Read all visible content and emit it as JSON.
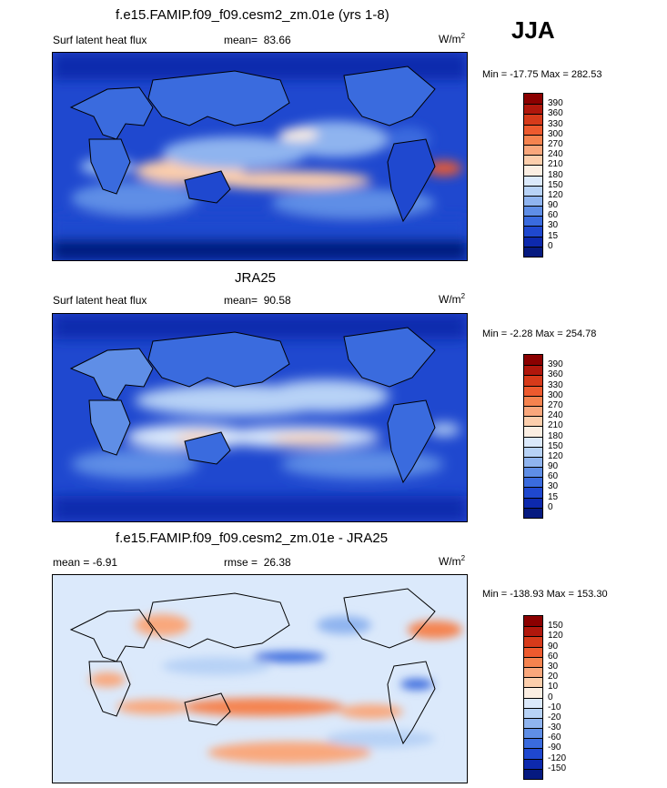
{
  "season": "JJA",
  "panels": [
    {
      "title": "f.e15.FAMIP.f09_f09.cesm2_zm.01e (yrs 1-8)",
      "left_label": "Surf latent heat flux",
      "stat_label": "mean=",
      "stat_value": "83.66",
      "units_base": "W/m",
      "units_sup": "2",
      "minmax": "Min = -17.75 Max = 282.53"
    },
    {
      "title": "JRA25",
      "left_label": "Surf latent heat flux",
      "stat_label": "mean=",
      "stat_value": "90.58",
      "units_base": "W/m",
      "units_sup": "2",
      "minmax": "Min =  -2.28 Max = 254.78"
    },
    {
      "title": "f.e15.FAMIP.f09_f09.cesm2_zm.01e - JRA25",
      "left_label": "mean =  -6.91",
      "stat_label": "rmse =",
      "stat_value": "26.38",
      "units_base": "W/m",
      "units_sup": "2",
      "minmax": "Min = -138.93 Max = 153.30"
    }
  ],
  "chart_data": [
    {
      "type": "heatmap",
      "title": "f.e15.FAMIP.f09_f09.cesm2_zm.01e (yrs 1-8)",
      "field": "Surf latent heat flux",
      "units": "W/m2",
      "mean": 83.66,
      "min": -17.75,
      "max": 282.53,
      "colorbar": {
        "levels": [
          "390",
          "360",
          "330",
          "300",
          "270",
          "240",
          "210",
          "180",
          "150",
          "120",
          "90",
          "60",
          "30",
          "15",
          "0"
        ],
        "colors": [
          "#8b0000",
          "#b0170c",
          "#d63a1a",
          "#ed5a2e",
          "#f5834f",
          "#f9a77c",
          "#fcceac",
          "#fbeee2",
          "#dbe9fb",
          "#b7d2f6",
          "#8fb4ef",
          "#5f8ee6",
          "#3a6bde",
          "#1f48cf",
          "#0d29ad",
          "#061a80"
        ]
      }
    },
    {
      "type": "heatmap",
      "title": "JRA25",
      "field": "Surf latent heat flux",
      "units": "W/m2",
      "mean": 90.58,
      "min": -2.28,
      "max": 254.78,
      "colorbar": {
        "levels": [
          "390",
          "360",
          "330",
          "300",
          "270",
          "240",
          "210",
          "180",
          "150",
          "120",
          "90",
          "60",
          "30",
          "15",
          "0"
        ],
        "colors": [
          "#8b0000",
          "#b0170c",
          "#d63a1a",
          "#ed5a2e",
          "#f5834f",
          "#f9a77c",
          "#fcceac",
          "#fbeee2",
          "#dbe9fb",
          "#b7d2f6",
          "#8fb4ef",
          "#5f8ee6",
          "#3a6bde",
          "#1f48cf",
          "#0d29ad",
          "#061a80"
        ]
      }
    },
    {
      "type": "heatmap",
      "title": "f.e15.FAMIP.f09_f09.cesm2_zm.01e - JRA25",
      "units": "W/m2",
      "mean": -6.91,
      "rmse": 26.38,
      "min": -138.93,
      "max": 153.3,
      "colorbar": {
        "levels": [
          "150",
          "120",
          "90",
          "60",
          "30",
          "20",
          "10",
          "0",
          "-10",
          "-20",
          "-30",
          "-60",
          "-90",
          "-120",
          "-150"
        ],
        "colors": [
          "#8b0000",
          "#b0170c",
          "#d63a1a",
          "#ed5a2e",
          "#f5834f",
          "#f9a77c",
          "#fcceac",
          "#fbeee2",
          "#dbe9fb",
          "#b7d2f6",
          "#8fb4ef",
          "#5f8ee6",
          "#3a6bde",
          "#1f48cf",
          "#0d29ad",
          "#061a80"
        ]
      }
    }
  ]
}
